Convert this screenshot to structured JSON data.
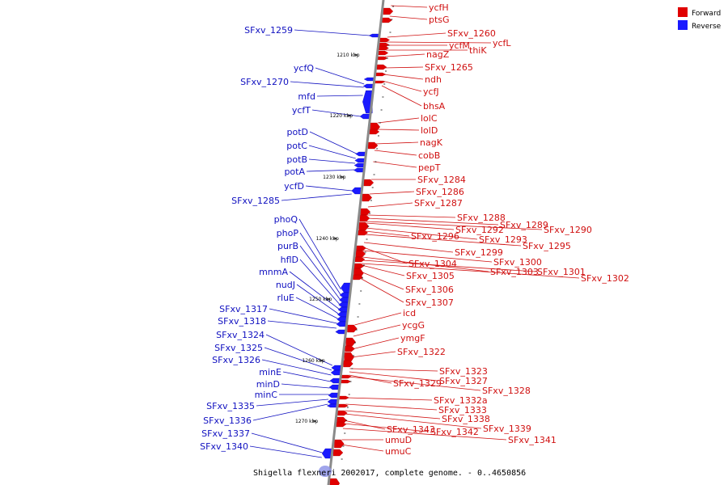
{
  "caption": "Shigella flexneri 2002017, complete genome. - 0..4650856",
  "legend": [
    {
      "label": "Forward",
      "color": "#e00000"
    },
    {
      "label": "Reverse",
      "color": "#1a1aff"
    }
  ],
  "kbp_labels": [
    "1210 kbp",
    "1220 kbp",
    "1230 kbp",
    "1240 kbp",
    "1250 kbp",
    "1260 kbp",
    "1270 kbp"
  ],
  "forward_genes": [
    "ycfH",
    "ptsG",
    "SFxv_1260",
    "ycfL",
    "ycfM",
    "thiK",
    "nagZ",
    "SFxv_1265",
    "ndh",
    "ycfJ",
    "bhsA",
    "lolC",
    "lolD",
    "nagK",
    "cobB",
    "pepT",
    "SFxv_1284",
    "SFxv_1286",
    "SFxv_1287",
    "SFxv_1288",
    "SFxv_1289",
    "SFxv_1290",
    "SFxv_1292",
    "SFxv_1293",
    "SFxv_1296",
    "SFxv_1295",
    "SFxv_1299",
    "SFxv_1304",
    "SFxv_1300",
    "SFxv_1303",
    "SFxv_1301",
    "SFxv_1302",
    "SFxv_1305",
    "SFxv_1306",
    "SFxv_1307",
    "icd",
    "ycgG",
    "ymgF",
    "SFxv_1322",
    "SFxv_1323",
    "SFxv_1327",
    "SFxv_1329",
    "SFxv_1328",
    "SFxv_1332a",
    "SFxv_1333",
    "SFxv_1338",
    "SFxv_1339",
    "SFxv_1343",
    "SFxv_1342",
    "SFxv_1341",
    "umuD",
    "umuC"
  ],
  "reverse_genes": [
    "SFxv_1259",
    "ycfQ",
    "SFxv_1270",
    "mfd",
    "ycfT",
    "potD",
    "potC",
    "potB",
    "potA",
    "ycfD",
    "SFxv_1285",
    "phoQ",
    "phoP",
    "purB",
    "hflD",
    "mnmA",
    "nudJ",
    "rluE",
    "SFxv_1317",
    "SFxv_1318",
    "SFxv_1324",
    "SFxv_1325",
    "SFxv_1326",
    "minE",
    "minD",
    "minC",
    "SFxv_1335",
    "SFxv_1336",
    "SFxv_1337",
    "SFxv_1340"
  ]
}
